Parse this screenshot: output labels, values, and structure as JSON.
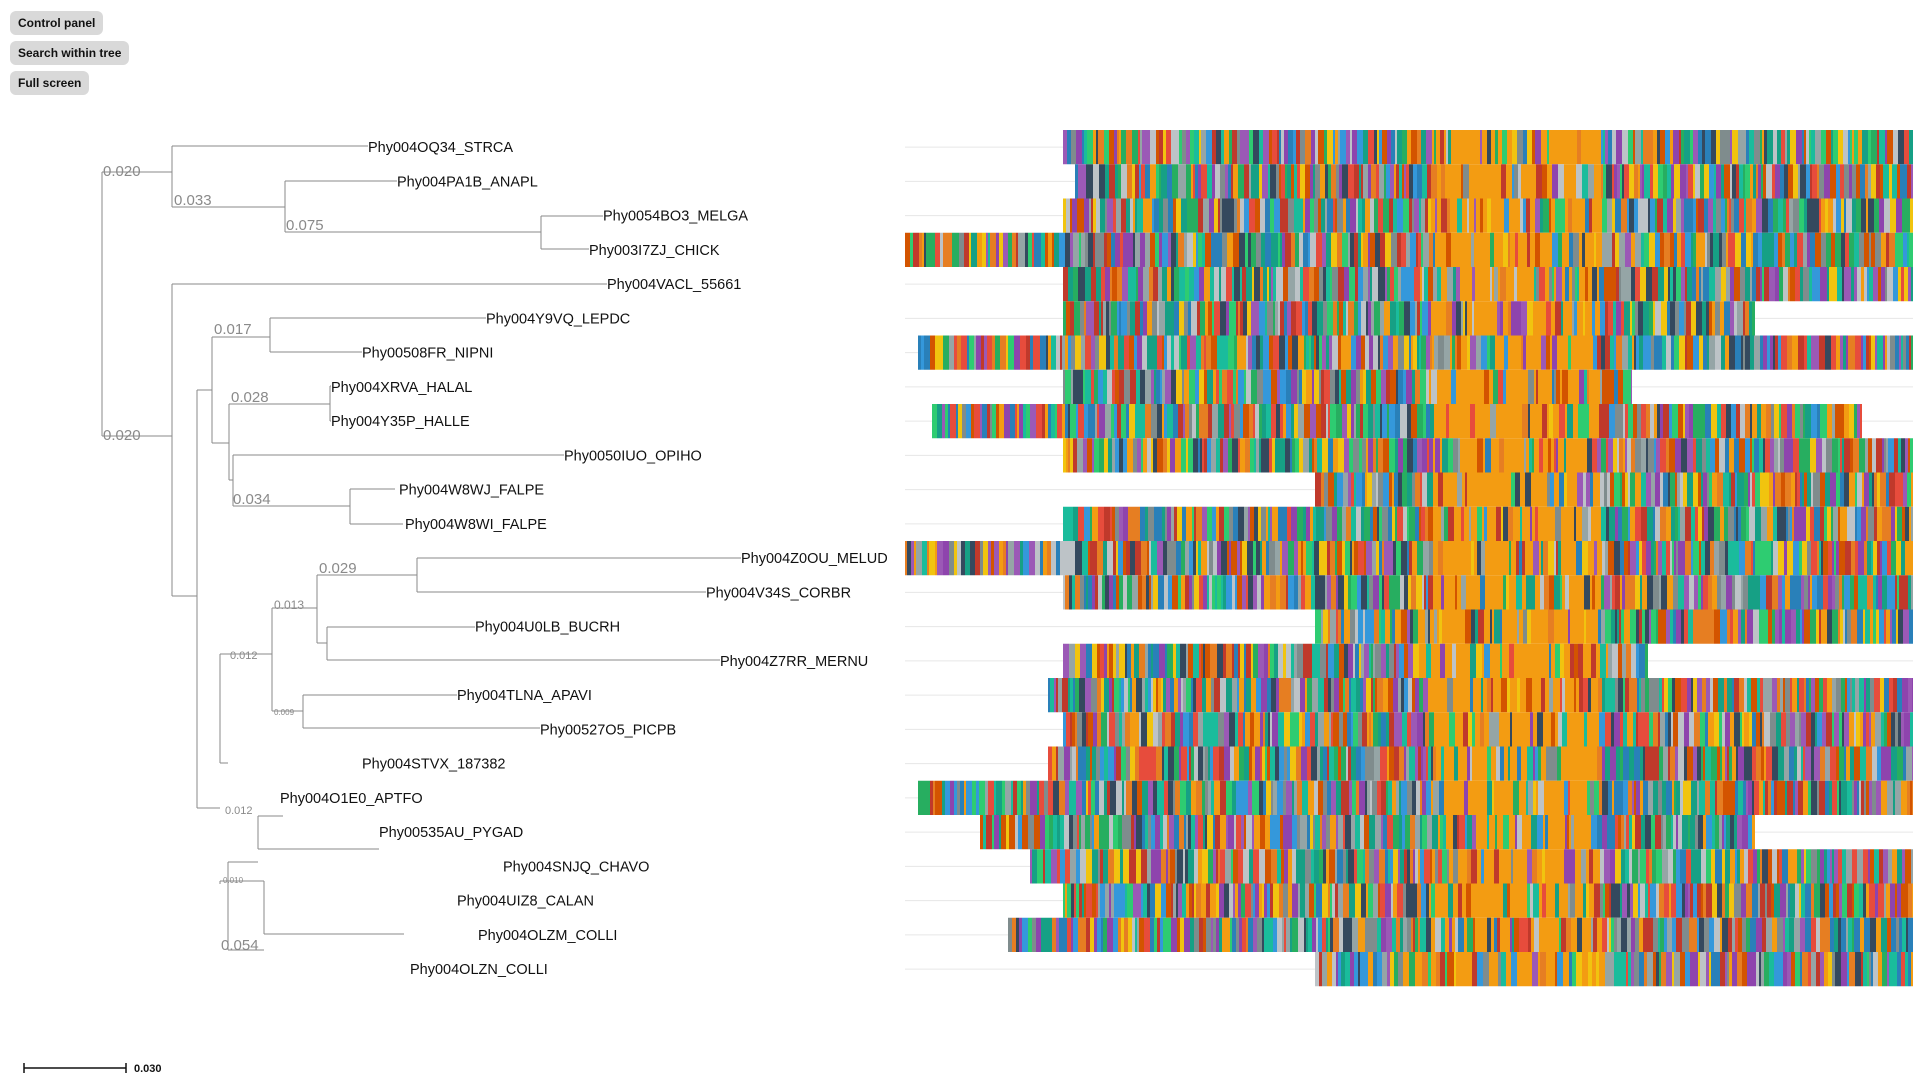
{
  "controls": {
    "control_panel": "Control panel",
    "search_within_tree": "Search within tree",
    "full_screen": "Full screen"
  },
  "leaves": [
    "Phy004OQ34_STRCA",
    "Phy004PA1B_ANAPL",
    "Phy0054BO3_MELGA",
    "Phy003I7ZJ_CHICK",
    "Phy004VACL_55661",
    "Phy004Y9VQ_LEPDC",
    "Phy00508FR_NIPNI",
    "Phy004XRVA_HALAL",
    "Phy004Y35P_HALLE",
    "Phy0050IUO_OPIHO",
    "Phy004W8WJ_FALPE",
    "Phy004W8WI_FALPE",
    "Phy004Z0OU_MELUD",
    "Phy004V34S_CORBR",
    "Phy004U0LB_BUCRH",
    "Phy004Z7RR_MERNU",
    "Phy004TLNA_APAVI",
    "Phy00527O5_PICPB",
    "Phy004STVX_187382",
    "Phy004O1E0_APTFO",
    "Phy00535AU_PYGAD",
    "Phy004SNJQ_CHAVO",
    "Phy004UIZ8_CALAN",
    "Phy004OLZM_COLLI",
    "Phy004OLZN_COLLI"
  ],
  "branch_labels": [
    "0.020",
    "0.033",
    "0.075",
    "0.020",
    "0.017",
    "0.028",
    "0.034",
    "0.029",
    "0.013",
    "0.012",
    "0.009",
    "0.012",
    "0.010",
    "0.054"
  ],
  "scale_bar": {
    "label": "0.030"
  },
  "alignment": {
    "palette": [
      "#f39c12",
      "#2ecc71",
      "#16a085",
      "#1abc9c",
      "#3498db",
      "#9b59b6",
      "#e74c3c",
      "#c0392b",
      "#d35400",
      "#7f8c8d",
      "#bdc3c7",
      "#95a5a6",
      "#34495e",
      "#27ae60",
      "#e67e22",
      "#f1c40f",
      "#8e44ad",
      "#2980b9"
    ]
  }
}
